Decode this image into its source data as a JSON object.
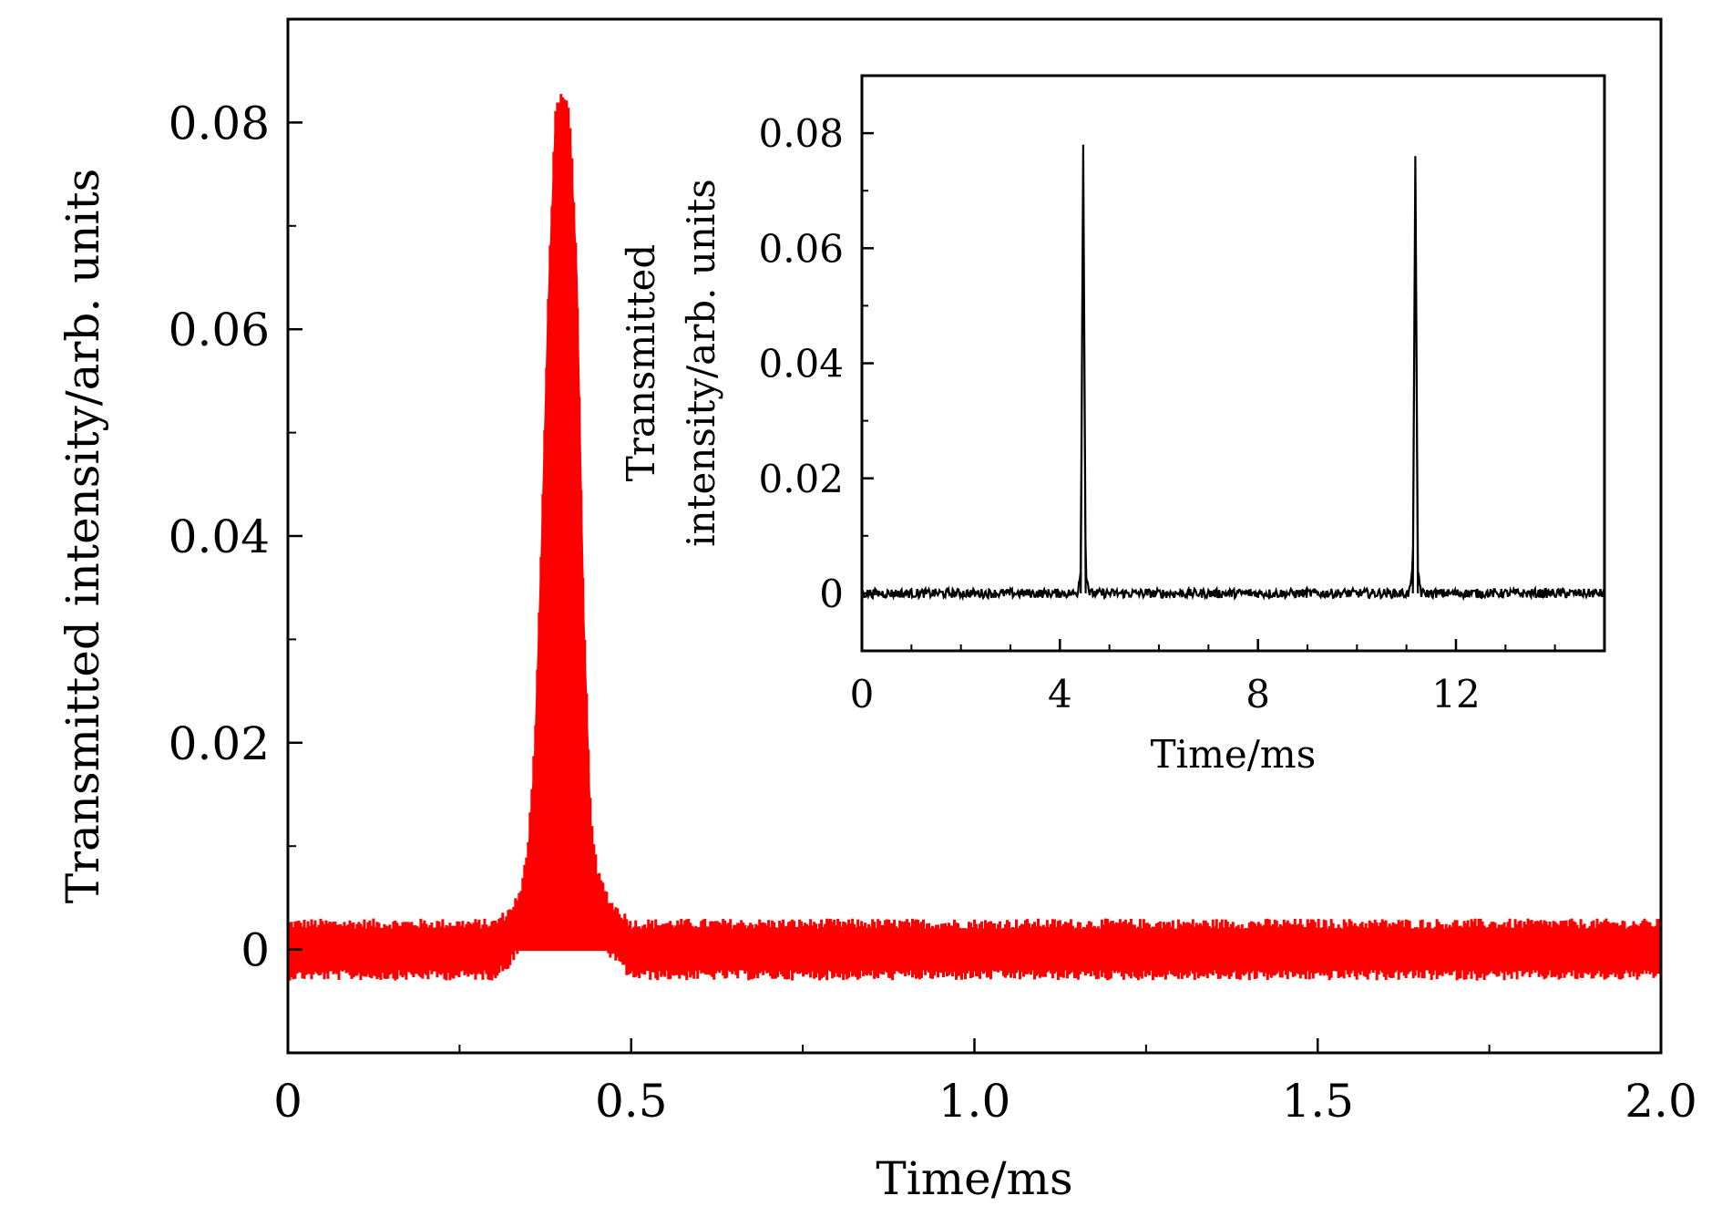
{
  "chart_data": [
    {
      "id": "main",
      "type": "line",
      "title": "",
      "xlabel": "Time/ms",
      "ylabel": "Transmitted intensity/arb. units",
      "xlim": [
        0,
        2.0
      ],
      "ylim": [
        -0.01,
        0.09
      ],
      "xticks": [
        0,
        0.5,
        1.0,
        1.5,
        2.0
      ],
      "xtick_labels": [
        "0",
        "0.5",
        "1.0",
        "1.5",
        "2.0"
      ],
      "yticks": [
        0,
        0.02,
        0.04,
        0.06,
        0.08
      ],
      "ytick_labels": [
        "0",
        "0.02",
        "0.04",
        "0.06",
        "0.08"
      ],
      "x_minor_step": 0.25,
      "y_minor_step": 0.01,
      "grid": false,
      "series": [
        {
          "color": "#ff0000",
          "noise_band": [
            -0.0025,
            0.0025
          ],
          "points": [
            [
              0.0,
              0.0
            ],
            [
              0.3,
              0.0
            ],
            [
              0.32,
              0.001
            ],
            [
              0.34,
              0.003
            ],
            [
              0.35,
              0.008
            ],
            [
              0.36,
              0.018
            ],
            [
              0.37,
              0.038
            ],
            [
              0.38,
              0.062
            ],
            [
              0.39,
              0.079
            ],
            [
              0.4,
              0.08
            ],
            [
              0.41,
              0.079
            ],
            [
              0.42,
              0.065
            ],
            [
              0.43,
              0.032
            ],
            [
              0.44,
              0.012
            ],
            [
              0.45,
              0.005
            ],
            [
              0.47,
              0.002
            ],
            [
              0.5,
              0.0
            ],
            [
              2.0,
              0.0
            ]
          ]
        }
      ]
    },
    {
      "id": "inset",
      "type": "line",
      "title": "",
      "xlabel": "Time/ms",
      "ylabel_lines": [
        "Transmitted",
        "intensity/arb. units"
      ],
      "xlim": [
        0,
        15
      ],
      "ylim": [
        -0.01,
        0.09
      ],
      "xticks": [
        0,
        4,
        8,
        12
      ],
      "xtick_labels": [
        "0",
        "4",
        "8",
        "12"
      ],
      "yticks": [
        0,
        0.02,
        0.04,
        0.06,
        0.08
      ],
      "ytick_labels": [
        "0",
        "0.02",
        "0.04",
        "0.06",
        "0.08"
      ],
      "x_minor_step": 1,
      "y_minor_step": 0.01,
      "grid": false,
      "series": [
        {
          "color": "#000000",
          "points": [
            [
              0.0,
              0.0
            ],
            [
              4.35,
              0.0
            ],
            [
              4.42,
              0.004
            ],
            [
              4.47,
              0.078
            ],
            [
              4.52,
              0.004
            ],
            [
              4.6,
              0.0
            ],
            [
              11.05,
              0.0
            ],
            [
              11.13,
              0.004
            ],
            [
              11.18,
              0.076
            ],
            [
              11.23,
              0.004
            ],
            [
              11.3,
              0.0
            ],
            [
              15.0,
              0.0
            ]
          ]
        }
      ]
    }
  ]
}
